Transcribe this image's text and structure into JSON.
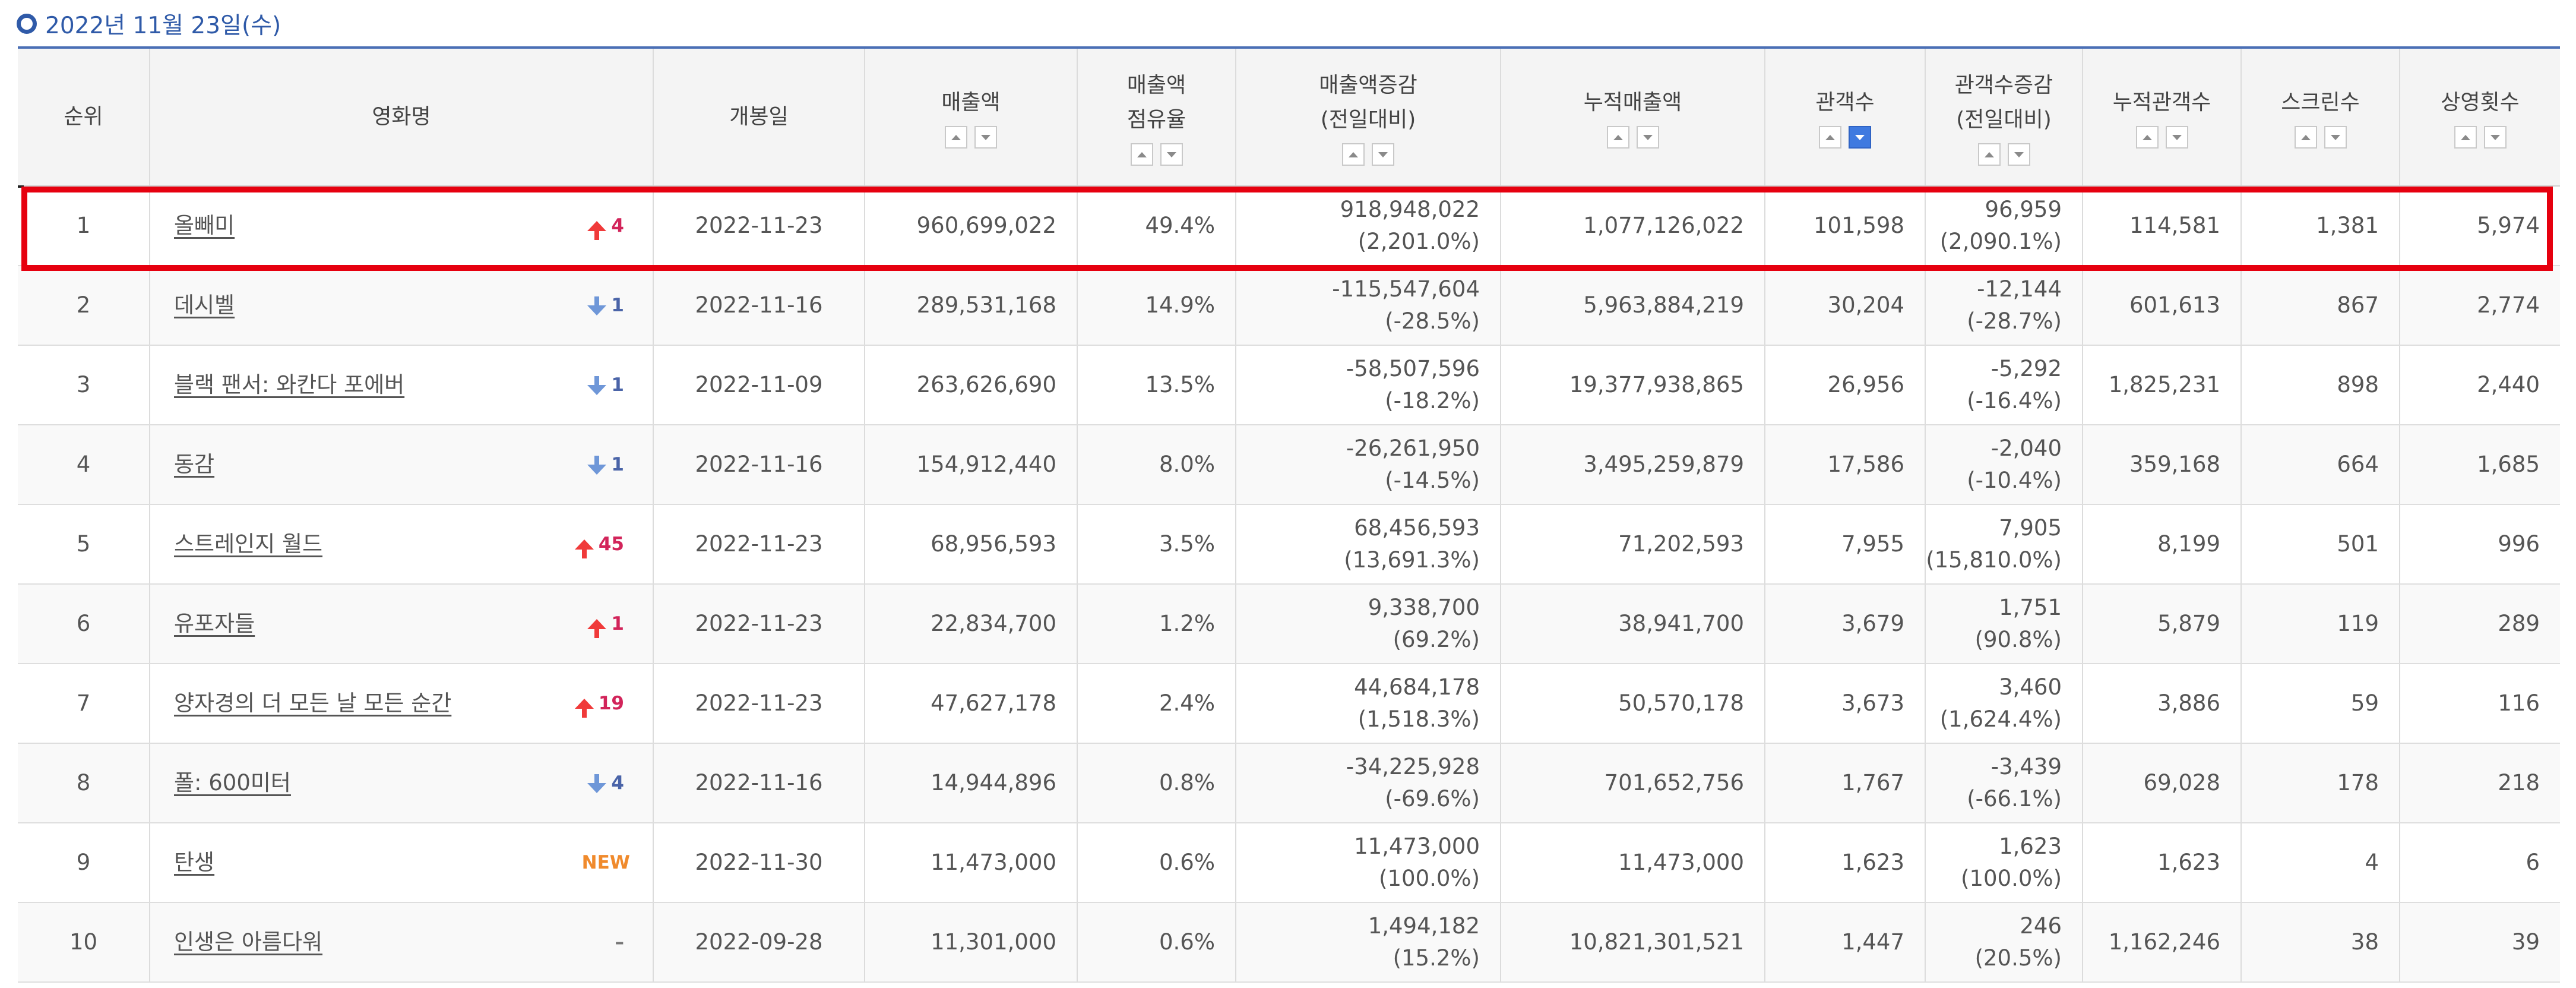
{
  "header": {
    "date": "2022년 11월 23일(수)"
  },
  "colors": {
    "accent": "#2f5aa8",
    "highlight": "#e6000f",
    "rank_up": "#d2245a",
    "rank_down": "#4a64a8",
    "new_badge": "#f08a2c",
    "active_sort": "#3f7ae0"
  },
  "columns": {
    "rank": "순위",
    "title": "영화명",
    "release": "개봉일",
    "sales": "매출액",
    "share_1": "매출액",
    "share_2": "점유율",
    "sales_change_1": "매출액증감",
    "sales_change_2": "(전일대비)",
    "cum_sales": "누적매출액",
    "audience": "관객수",
    "aud_change_1": "관객수증감",
    "aud_change_2": "(전일대비)",
    "cum_audience": "누적관객수",
    "screens": "스크린수",
    "shows": "상영횟수"
  },
  "icons": {
    "sort_asc": "sort-ascending-icon",
    "sort_desc": "sort-descending-icon",
    "rank_up": "arrow-up-icon",
    "rank_down": "arrow-down-icon"
  },
  "active_sort_column": "audience",
  "rows": [
    {
      "rank": "1",
      "title": "올빼미",
      "change_type": "up",
      "change": "4",
      "release": "2022-11-23",
      "sales": "960,699,022",
      "share": "49.4%",
      "sales_change": "918,948,022",
      "sales_change_pct": "(2,201.0%)",
      "cum_sales": "1,077,126,022",
      "audience": "101,598",
      "aud_change": "96,959",
      "aud_change_pct": "(2,090.1%)",
      "cum_audience": "114,581",
      "screens": "1,381",
      "shows": "5,974"
    },
    {
      "rank": "2",
      "title": "데시벨",
      "change_type": "down",
      "change": "1",
      "release": "2022-11-16",
      "sales": "289,531,168",
      "share": "14.9%",
      "sales_change": "-115,547,604",
      "sales_change_pct": "(-28.5%)",
      "cum_sales": "5,963,884,219",
      "audience": "30,204",
      "aud_change": "-12,144",
      "aud_change_pct": "(-28.7%)",
      "cum_audience": "601,613",
      "screens": "867",
      "shows": "2,774"
    },
    {
      "rank": "3",
      "title": "블랙 팬서: 와칸다 포에버",
      "change_type": "down",
      "change": "1",
      "release": "2022-11-09",
      "sales": "263,626,690",
      "share": "13.5%",
      "sales_change": "-58,507,596",
      "sales_change_pct": "(-18.2%)",
      "cum_sales": "19,377,938,865",
      "audience": "26,956",
      "aud_change": "-5,292",
      "aud_change_pct": "(-16.4%)",
      "cum_audience": "1,825,231",
      "screens": "898",
      "shows": "2,440"
    },
    {
      "rank": "4",
      "title": "동감",
      "change_type": "down",
      "change": "1",
      "release": "2022-11-16",
      "sales": "154,912,440",
      "share": "8.0%",
      "sales_change": "-26,261,950",
      "sales_change_pct": "(-14.5%)",
      "cum_sales": "3,495,259,879",
      "audience": "17,586",
      "aud_change": "-2,040",
      "aud_change_pct": "(-10.4%)",
      "cum_audience": "359,168",
      "screens": "664",
      "shows": "1,685"
    },
    {
      "rank": "5",
      "title": "스트레인지 월드",
      "change_type": "up",
      "change": "45",
      "release": "2022-11-23",
      "sales": "68,956,593",
      "share": "3.5%",
      "sales_change": "68,456,593",
      "sales_change_pct": "(13,691.3%)",
      "cum_sales": "71,202,593",
      "audience": "7,955",
      "aud_change": "7,905",
      "aud_change_pct": "(15,810.0%)",
      "cum_audience": "8,199",
      "screens": "501",
      "shows": "996"
    },
    {
      "rank": "6",
      "title": "유포자들",
      "change_type": "up",
      "change": "1",
      "release": "2022-11-23",
      "sales": "22,834,700",
      "share": "1.2%",
      "sales_change": "9,338,700",
      "sales_change_pct": "(69.2%)",
      "cum_sales": "38,941,700",
      "audience": "3,679",
      "aud_change": "1,751",
      "aud_change_pct": "(90.8%)",
      "cum_audience": "5,879",
      "screens": "119",
      "shows": "289"
    },
    {
      "rank": "7",
      "title": "양자경의 더 모든 날 모든 순간",
      "change_type": "up",
      "change": "19",
      "release": "2022-11-23",
      "sales": "47,627,178",
      "share": "2.4%",
      "sales_change": "44,684,178",
      "sales_change_pct": "(1,518.3%)",
      "cum_sales": "50,570,178",
      "audience": "3,673",
      "aud_change": "3,460",
      "aud_change_pct": "(1,624.4%)",
      "cum_audience": "3,886",
      "screens": "59",
      "shows": "116"
    },
    {
      "rank": "8",
      "title": "폴: 600미터",
      "change_type": "down",
      "change": "4",
      "release": "2022-11-16",
      "sales": "14,944,896",
      "share": "0.8%",
      "sales_change": "-34,225,928",
      "sales_change_pct": "(-69.6%)",
      "cum_sales": "701,652,756",
      "audience": "1,767",
      "aud_change": "-3,439",
      "aud_change_pct": "(-66.1%)",
      "cum_audience": "69,028",
      "screens": "178",
      "shows": "218"
    },
    {
      "rank": "9",
      "title": "탄생",
      "change_type": "new",
      "change": "NEW",
      "release": "2022-11-30",
      "sales": "11,473,000",
      "share": "0.6%",
      "sales_change": "11,473,000",
      "sales_change_pct": "(100.0%)",
      "cum_sales": "11,473,000",
      "audience": "1,623",
      "aud_change": "1,623",
      "aud_change_pct": "(100.0%)",
      "cum_audience": "1,623",
      "screens": "4",
      "shows": "6"
    },
    {
      "rank": "10",
      "title": "인생은 아름다워",
      "change_type": "none",
      "change": "–",
      "release": "2022-09-28",
      "sales": "11,301,000",
      "share": "0.6%",
      "sales_change": "1,494,182",
      "sales_change_pct": "(15.2%)",
      "cum_sales": "10,821,301,521",
      "audience": "1,447",
      "aud_change": "246",
      "aud_change_pct": "(20.5%)",
      "cum_audience": "1,162,246",
      "screens": "38",
      "shows": "39"
    }
  ]
}
